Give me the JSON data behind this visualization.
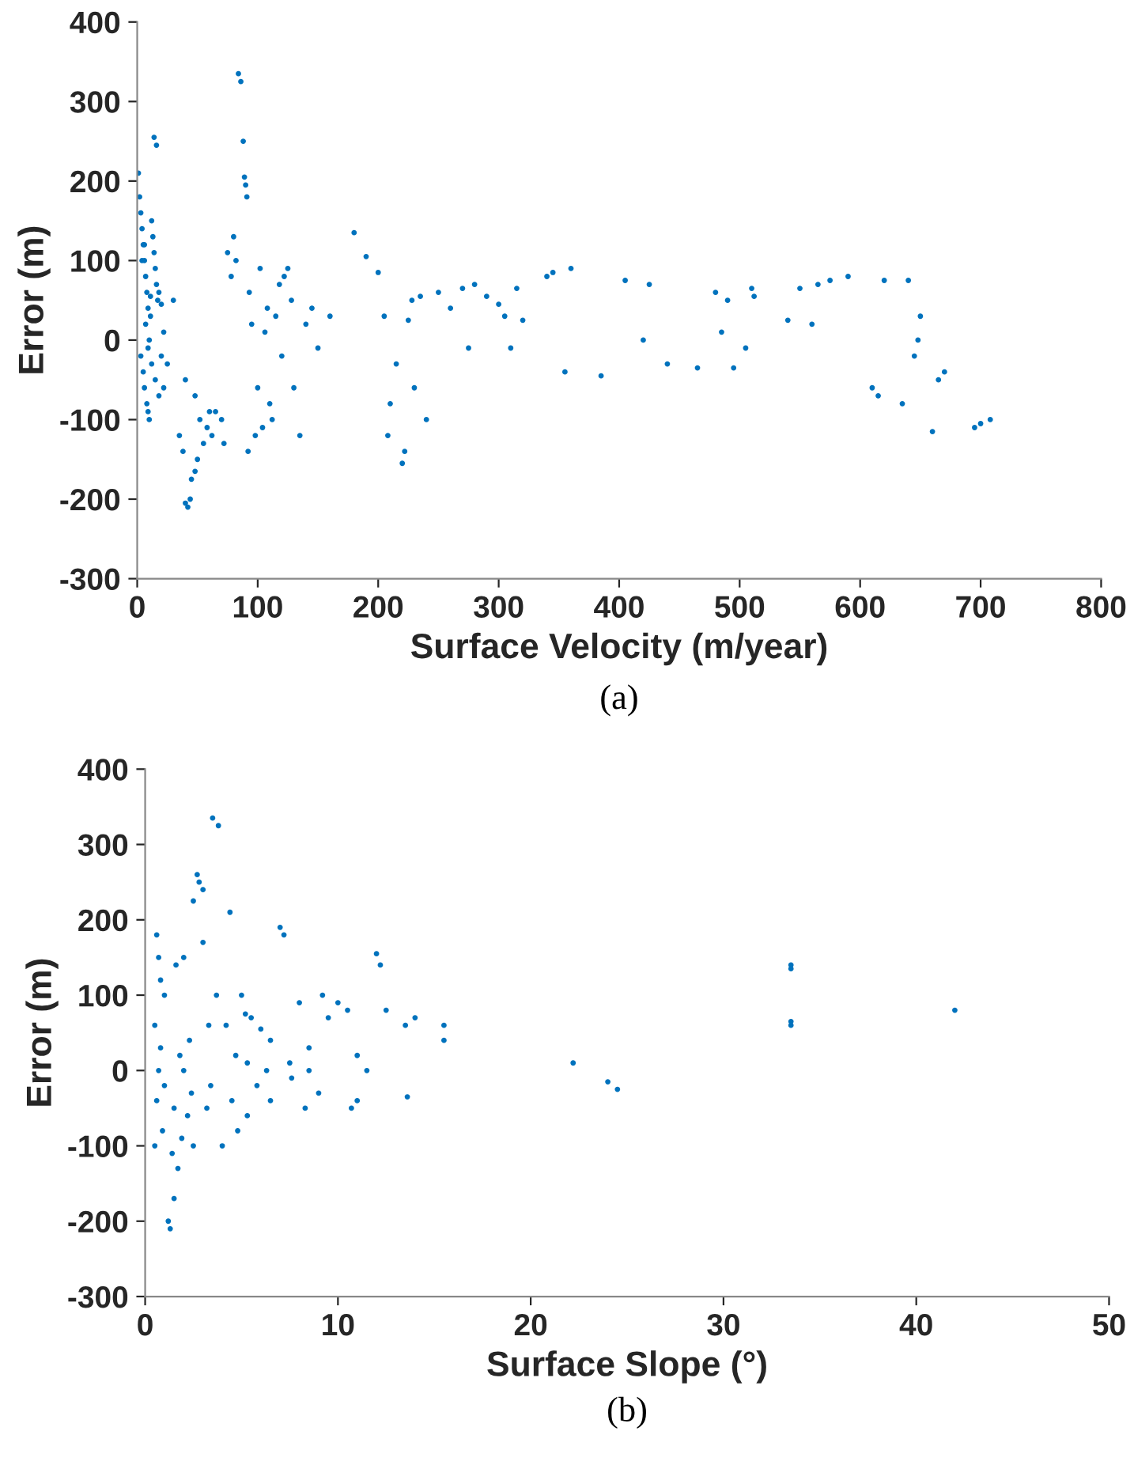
{
  "chart_data": [
    {
      "type": "scatter",
      "xlabel": "Surface Velocity (m/year)",
      "ylabel": "Error (m)",
      "annotations": [
        "(a)"
      ],
      "xlim": [
        0,
        800
      ],
      "ylim": [
        -300,
        400
      ],
      "xticks": [
        0,
        100,
        200,
        300,
        400,
        500,
        600,
        700,
        800
      ],
      "yticks": [
        -300,
        -200,
        -100,
        0,
        100,
        200,
        300,
        400
      ],
      "grid": false,
      "legend": false,
      "marker": "circle",
      "series": [
        {
          "color": "#0072bd",
          "x": [
            1,
            2,
            3,
            3,
            4,
            5,
            5,
            6,
            6,
            7,
            7,
            8,
            8,
            9,
            9,
            10,
            10,
            11,
            12,
            12,
            13,
            14,
            15,
            15,
            16,
            17,
            18,
            18,
            20,
            20,
            22,
            22,
            25,
            4,
            6,
            9,
            11,
            14,
            16,
            30,
            35,
            38,
            40,
            42,
            44,
            45,
            48,
            50,
            52,
            55,
            58,
            60,
            48,
            40,
            62,
            65,
            70,
            72,
            75,
            78,
            80,
            82,
            84,
            86,
            88,
            89,
            90,
            91,
            92,
            93,
            95,
            98,
            100,
            102,
            104,
            106,
            108,
            110,
            112,
            115,
            118,
            120,
            122,
            125,
            128,
            130,
            135,
            140,
            145,
            150,
            160,
            180,
            190,
            200,
            205,
            208,
            210,
            215,
            220,
            222,
            225,
            228,
            230,
            235,
            240,
            250,
            260,
            270,
            280,
            290,
            300,
            305,
            310,
            315,
            320,
            275,
            340,
            345,
            360,
            355,
            385,
            405,
            420,
            425,
            440,
            465,
            480,
            485,
            490,
            495,
            505,
            510,
            512,
            540,
            550,
            560,
            565,
            575,
            590,
            610,
            615,
            620,
            635,
            640,
            645,
            648,
            650,
            660,
            665,
            670,
            695,
            700,
            708
          ],
          "values": [
            210,
            180,
            160,
            -20,
            140,
            120,
            -40,
            100,
            -60,
            80,
            20,
            60,
            -80,
            40,
            -10,
            0,
            -100,
            30,
            150,
            -30,
            130,
            110,
            90,
            -50,
            70,
            50,
            60,
            -70,
            45,
            -20,
            10,
            -60,
            -30,
            100,
            120,
            -90,
            55,
            255,
            245,
            50,
            -120,
            -140,
            -205,
            -210,
            -200,
            -175,
            -165,
            -150,
            -100,
            -130,
            -110,
            -90,
            -70,
            -50,
            -120,
            -90,
            -100,
            -130,
            110,
            80,
            130,
            100,
            335,
            325,
            250,
            205,
            195,
            180,
            -140,
            60,
            20,
            -120,
            -60,
            90,
            -110,
            10,
            40,
            -80,
            -100,
            30,
            70,
            -20,
            80,
            90,
            50,
            -60,
            -120,
            20,
            40,
            -10,
            30,
            135,
            105,
            85,
            30,
            -120,
            -80,
            -30,
            -155,
            -140,
            25,
            50,
            -60,
            55,
            -100,
            60,
            40,
            65,
            70,
            55,
            45,
            30,
            -10,
            65,
            25,
            -10,
            80,
            85,
            90,
            -40,
            -45,
            75,
            0,
            70,
            -30,
            -35,
            60,
            10,
            50,
            -35,
            -10,
            65,
            55,
            25,
            65,
            20,
            70,
            75,
            80,
            -60,
            -70,
            75,
            -80,
            75,
            -20,
            0,
            30,
            -115,
            -50,
            -40,
            -110,
            -105,
            -100
          ]
        }
      ]
    },
    {
      "type": "scatter",
      "xlabel": "Surface Slope (°)",
      "ylabel": "Error (m)",
      "annotations": [
        "(b)"
      ],
      "xlim": [
        0,
        50
      ],
      "ylim": [
        -300,
        400
      ],
      "xticks": [
        0,
        10,
        20,
        30,
        40,
        50
      ],
      "yticks": [
        -300,
        -200,
        -100,
        0,
        100,
        200,
        300,
        400
      ],
      "grid": false,
      "legend": false,
      "marker": "circle",
      "series": [
        {
          "color": "#0072bd",
          "x": [
            0.5,
            0.5,
            0.6,
            0.6,
            0.7,
            0.7,
            0.8,
            0.8,
            0.9,
            1.0,
            1.0,
            1.2,
            1.3,
            1.4,
            1.5,
            1.5,
            1.6,
            1.7,
            1.8,
            1.9,
            2.0,
            2.0,
            2.2,
            2.3,
            2.4,
            2.5,
            2.5,
            2.7,
            2.8,
            3.0,
            3.0,
            3.2,
            3.3,
            3.4,
            3.5,
            3.8,
            3.7,
            4.0,
            4.2,
            4.4,
            4.5,
            4.7,
            4.8,
            5.0,
            5.2,
            5.3,
            5.3,
            5.5,
            5.8,
            6.0,
            6.3,
            6.5,
            6.5,
            7.0,
            7.2,
            7.5,
            7.6,
            8.0,
            8.3,
            8.5,
            8.5,
            9.0,
            9.2,
            9.5,
            10.0,
            10.5,
            10.7,
            11.0,
            11.0,
            11.5,
            12.0,
            12.2,
            12.5,
            13.5,
            13.6,
            14.0,
            15.5,
            15.5,
            22.2,
            24.0,
            24.5,
            33.5,
            33.5,
            33.5,
            33.5,
            42.0
          ],
          "values": [
            -100,
            60,
            180,
            -40,
            150,
            0,
            120,
            30,
            -80,
            -20,
            100,
            -200,
            -210,
            -110,
            -170,
            -50,
            140,
            -130,
            20,
            -90,
            150,
            0,
            -60,
            40,
            -30,
            -100,
            225,
            260,
            250,
            240,
            170,
            -50,
            60,
            -20,
            335,
            325,
            100,
            -100,
            60,
            210,
            -40,
            20,
            -80,
            100,
            75,
            -60,
            10,
            70,
            -20,
            55,
            0,
            -40,
            40,
            190,
            180,
            10,
            -10,
            90,
            -50,
            0,
            30,
            -30,
            100,
            70,
            90,
            80,
            -50,
            -40,
            20,
            0,
            155,
            140,
            80,
            60,
            -35,
            70,
            60,
            40,
            10,
            -15,
            -25,
            140,
            135,
            65,
            60,
            80
          ]
        }
      ]
    }
  ]
}
